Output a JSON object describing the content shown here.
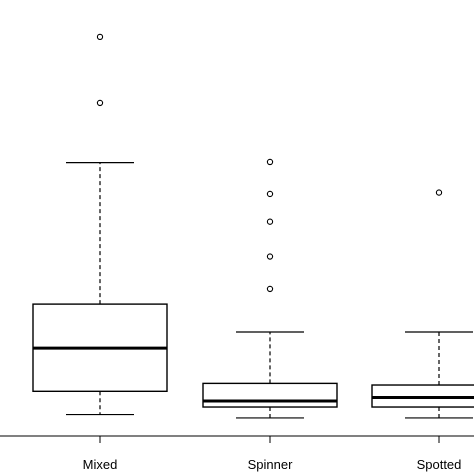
{
  "chart_data": {
    "type": "box",
    "categories": [
      "Mixed",
      "Spinner",
      "Spotted"
    ],
    "series": [
      {
        "category": "Mixed",
        "whisker_low": 3.7,
        "q1": 20.7,
        "median": 52.3,
        "q3": 84.5,
        "whisker_high": 188.0,
        "outliers": [
          231.7,
          280.0
        ]
      },
      {
        "category": "Spinner",
        "whisker_low": 1.2,
        "q1": 9.2,
        "median": 13.6,
        "q3": 26.5,
        "whisker_high": 64.1,
        "outliers": [
          95.6,
          119.3,
          144.8,
          165.1,
          188.5
        ]
      },
      {
        "category": "Spotted",
        "whisker_low": 1.2,
        "q1": 9.2,
        "median": 16.2,
        "q3": 25.3,
        "whisker_high": 64.1,
        "outliers": [
          166.1
        ]
      }
    ],
    "ylim": [
      -12,
      307
    ],
    "title": "",
    "xlabel": "",
    "ylabel": "",
    "colors": {
      "box_border": "#000000",
      "background": "#ffffff",
      "outlier_fill": "#ffffff"
    }
  }
}
